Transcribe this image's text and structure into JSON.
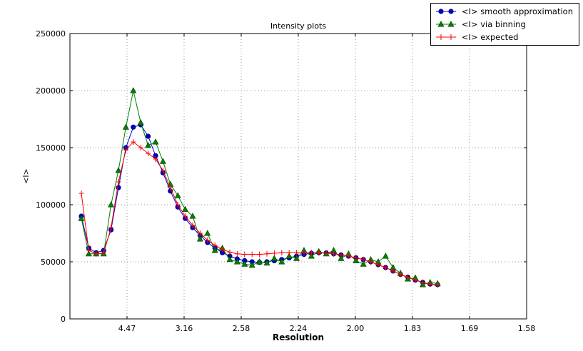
{
  "figure": {
    "title": "Intensity plots",
    "xlabel": "Resolution",
    "ylabel": "<I>"
  },
  "legend": {
    "items": [
      {
        "label": "<I> smooth approximation"
      },
      {
        "label": "<I> via binning"
      },
      {
        "label": "<I> expected"
      }
    ]
  },
  "chart_data": {
    "type": "line",
    "title": "Intensity plots",
    "xlabel": "Resolution",
    "ylabel": "<I>",
    "grid": true,
    "legend_position": "top-right",
    "xlim": [
      0,
      0.4
    ],
    "ylim": [
      0,
      250000
    ],
    "x_axis_note": "x axis linear in 1/d^2; tick labels show resolution d in Angstrom",
    "xticks": [
      {
        "pos": 0.05,
        "label": "4.47"
      },
      {
        "pos": 0.1,
        "label": "3.16"
      },
      {
        "pos": 0.15,
        "label": "2.58"
      },
      {
        "pos": 0.2,
        "label": "2.24"
      },
      {
        "pos": 0.25,
        "label": "2.00"
      },
      {
        "pos": 0.3,
        "label": "1.83"
      },
      {
        "pos": 0.35,
        "label": "1.69"
      },
      {
        "pos": 0.4,
        "label": "1.58"
      }
    ],
    "yticks": [
      {
        "pos": 0,
        "label": "0"
      },
      {
        "pos": 50000,
        "label": "50000"
      },
      {
        "pos": 100000,
        "label": "100000"
      },
      {
        "pos": 150000,
        "label": "150000"
      },
      {
        "pos": 200000,
        "label": "200000"
      },
      {
        "pos": 250000,
        "label": "250000"
      }
    ],
    "x": [
      0.01,
      0.0165,
      0.023,
      0.0295,
      0.036,
      0.0425,
      0.049,
      0.0555,
      0.062,
      0.0685,
      0.075,
      0.0815,
      0.088,
      0.0945,
      0.101,
      0.1075,
      0.114,
      0.1205,
      0.127,
      0.1335,
      0.14,
      0.1465,
      0.153,
      0.1595,
      0.166,
      0.1725,
      0.179,
      0.1855,
      0.192,
      0.1985,
      0.205,
      0.2115,
      0.218,
      0.2245,
      0.231,
      0.2375,
      0.244,
      0.2505,
      0.257,
      0.2635,
      0.27,
      0.2765,
      0.283,
      0.2895,
      0.296,
      0.3025,
      0.309,
      0.3155,
      0.322
    ],
    "series": [
      {
        "name": "<I> smooth approximation",
        "color": "#0000cc",
        "marker": "circle",
        "values": [
          90000,
          62000,
          58000,
          60000,
          78000,
          115000,
          150000,
          168000,
          170000,
          160000,
          143000,
          128000,
          112000,
          98000,
          88000,
          80000,
          73000,
          67000,
          62000,
          58000,
          55000,
          52500,
          51000,
          50000,
          49500,
          50000,
          51000,
          52000,
          53500,
          55000,
          56500,
          57500,
          58000,
          57800,
          57000,
          56000,
          55000,
          53500,
          52000,
          50000,
          47500,
          45000,
          42000,
          39000,
          36500,
          34000,
          32000,
          30500,
          30000
        ]
      },
      {
        "name": "<I> via binning",
        "color": "#008000",
        "marker": "triangle",
        "values": [
          88000,
          57000,
          57000,
          57000,
          100000,
          130000,
          168000,
          200000,
          172000,
          152000,
          155000,
          138000,
          118000,
          108000,
          96000,
          90000,
          70000,
          75000,
          60000,
          62000,
          52000,
          50000,
          48000,
          47000,
          50000,
          49000,
          53000,
          50000,
          55000,
          53000,
          60000,
          55000,
          59000,
          57000,
          60000,
          53000,
          57000,
          51000,
          48000,
          52000,
          50000,
          55000,
          45000,
          40000,
          35000,
          36000,
          30000,
          32000,
          31000
        ]
      },
      {
        "name": "<I> expected",
        "color": "#ff0000",
        "marker": "plus",
        "values": [
          110000,
          60000,
          57000,
          57500,
          80000,
          120000,
          148000,
          155000,
          150000,
          145000,
          140000,
          130000,
          115000,
          100000,
          90000,
          82000,
          75000,
          69000,
          64500,
          61000,
          58500,
          57000,
          56500,
          56500,
          56500,
          57000,
          57500,
          58000,
          58000,
          58000,
          58000,
          58000,
          58000,
          57500,
          57000,
          56000,
          55000,
          53500,
          52000,
          50000,
          47500,
          45000,
          42000,
          39000,
          36500,
          34000,
          32000,
          30500,
          30000
        ]
      }
    ]
  }
}
